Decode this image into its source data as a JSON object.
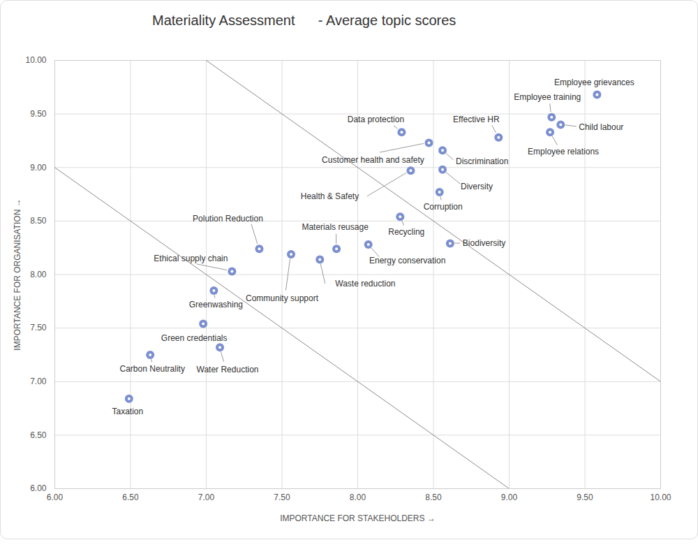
{
  "chart_data": {
    "type": "scatter",
    "title": "Materiality Assessment      - Average topic scores",
    "x_label": "IMPORTANCE FOR STAKEHOLDERS",
    "y_label": "IMPORTANCE FOR ORGANISATION",
    "point_labels": [
      "Employee grievances",
      "Employee training",
      "Child labour",
      "Employee relations",
      "Effective HR",
      "Data protection",
      "Customer health and safety",
      "Discrimination",
      "Diversity",
      "Health & Safety",
      "Corruption",
      "Recycling",
      "Biodiversity",
      "Energy conservation",
      "Materials reusage",
      "Waste reduction",
      "Community support",
      "Polution Reduction",
      "Ethical supply chain",
      "Greenwashing",
      "Green credentials",
      "Water Reduction",
      "Carbon Neutrality",
      "Taxation"
    ],
    "x": [
      9.58,
      9.28,
      9.34,
      9.27,
      8.93,
      8.29,
      8.47,
      8.56,
      8.56,
      8.35,
      8.54,
      8.28,
      8.61,
      8.07,
      7.86,
      7.75,
      7.56,
      7.35,
      7.17,
      7.05,
      6.98,
      7.09,
      6.63,
      6.49
    ],
    "values": [
      9.68,
      9.47,
      9.4,
      9.33,
      9.28,
      9.33,
      9.23,
      9.16,
      8.98,
      8.97,
      8.77,
      8.54,
      8.29,
      8.28,
      8.24,
      8.14,
      8.19,
      8.24,
      8.03,
      7.85,
      7.54,
      7.32,
      7.25,
      6.84
    ],
    "color": "#7b8fd0",
    "marker": "circle",
    "grid": true,
    "xlim": [
      6,
      10
    ],
    "ylim": [
      6,
      10
    ],
    "xticks": [
      {
        "value": 6,
        "label": "6.00"
      },
      {
        "value": 6.5,
        "label": "6.50"
      },
      {
        "value": 7,
        "label": "7.00"
      },
      {
        "value": 7.5,
        "label": "7.50"
      },
      {
        "value": 8,
        "label": "8.00"
      },
      {
        "value": 8.5,
        "label": "8.50"
      },
      {
        "value": 9,
        "label": "9.00"
      },
      {
        "value": 9.5,
        "label": "9.50"
      },
      {
        "value": 10,
        "label": "10.00"
      }
    ],
    "yticks": [
      {
        "value": 6,
        "label": "6.00"
      },
      {
        "value": 6.5,
        "label": "6.50"
      },
      {
        "value": 7,
        "label": "7.00"
      },
      {
        "value": 7.5,
        "label": "7.50"
      },
      {
        "value": 8,
        "label": "8.00"
      },
      {
        "value": 8.5,
        "label": "8.50"
      },
      {
        "value": 9,
        "label": "9.00"
      },
      {
        "value": 9.5,
        "label": "9.50"
      },
      {
        "value": 10,
        "label": "10.00"
      }
    ],
    "reference_lines": [
      {
        "x": [
          7,
          10
        ],
        "y": [
          10,
          7
        ]
      },
      {
        "x": [
          6,
          9
        ],
        "y": [
          9,
          6
        ]
      }
    ]
  }
}
